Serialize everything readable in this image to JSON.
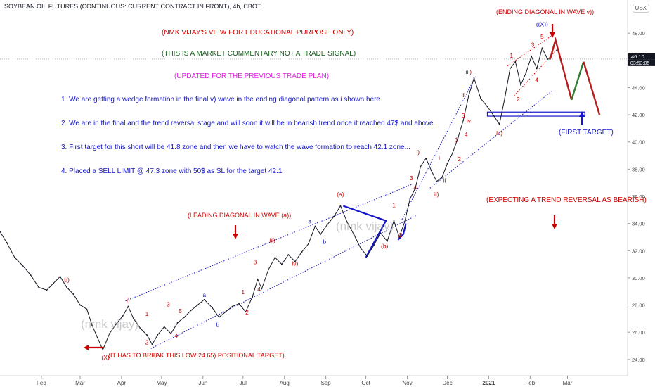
{
  "header": {
    "title": "SOYBEAN OIL FUTURES (CONTINUOUS: CURRENT CONTRACT IN FRONT), 4h, CBOT",
    "currency": "USX"
  },
  "price_label": {
    "price": "46.10",
    "countdown": "03:53:05",
    "color": "#131722"
  },
  "annotations": {
    "title_line": "(NMK VIJAY'S VIEW FOR EDUCATIONAL PURPOSE ONLY)",
    "disclaimer": "(THIS IS A MARKET COMMENTARY NOT A  TRADE SIGNAL)",
    "updated": "(UPDATED FOR THE PREVIOUS TRADE PLAN)",
    "points": [
      "1. We are getting a wedge formation in the final v) wave in the ending diagonal pattern as i shown here.",
      "2. We are in the final and the trend reversal stage and will soon it will be in bearish trend once it reached 47$ and above.",
      "3. First target for this short will be 41.8 zone and then we have to watch the wave formation to reach 42.1 zone...",
      "4. Placed a SELL LIMIT @ 47.3 zone with 50$ as  SL for the target 42.1"
    ],
    "ending_diagonal": "(ENDING DIAGONAL IN WAVE v))",
    "first_target": "(FIRST TARGET)",
    "expecting": "(EXPECTING A TREND REVERSAL AS BEARISH)",
    "leading_diagonal": "(LEADING DIAGONAL IN WAVE (a))",
    "break_low": "(IT HAS TO BREAK THIS LOW 24.65) POSITIONAL TARGET)",
    "watermark": "(nmk vijay)"
  },
  "colors": {
    "red": "#cc0000",
    "dark_red": "#b71c1c",
    "blue": "#1414c8",
    "magenta": "#e020e0",
    "green": "#1b5e20",
    "price": "#131722",
    "projection_green": "#2e7d32"
  },
  "wave_labels": [
    {
      "t": "b)",
      "x": "2020-02-20",
      "y": 29.7,
      "c": "red"
    },
    {
      "t": "(X)",
      "x": "2020-03-20",
      "y": 24.0,
      "c": "red"
    },
    {
      "t": "i)",
      "x": "2020-04-06",
      "y": 28.2,
      "c": "red"
    },
    {
      "t": "ii)",
      "x": "2020-04-26",
      "y": 24.2,
      "c": "red"
    },
    {
      "t": "1",
      "x": "2020-04-20",
      "y": 27.2,
      "c": "red"
    },
    {
      "t": "2",
      "x": "2020-04-20",
      "y": 25.1,
      "c": "red"
    },
    {
      "t": "3",
      "x": "2020-05-06",
      "y": 27.9,
      "c": "red"
    },
    {
      "t": "4",
      "x": "2020-05-12",
      "y": 25.6,
      "c": "red"
    },
    {
      "t": "5",
      "x": "2020-05-15",
      "y": 27.4,
      "c": "red"
    },
    {
      "t": "a",
      "x": "2020-06-02",
      "y": 28.6,
      "c": "blue"
    },
    {
      "t": "b",
      "x": "2020-06-12",
      "y": 26.4,
      "c": "blue"
    },
    {
      "t": "1",
      "x": "2020-07-01",
      "y": 28.8,
      "c": "red"
    },
    {
      "t": "2",
      "x": "2020-07-04",
      "y": 27.3,
      "c": "red"
    },
    {
      "t": "3",
      "x": "2020-07-10",
      "y": 31.0,
      "c": "red"
    },
    {
      "t": "4",
      "x": "2020-07-13",
      "y": 29.0,
      "c": "red"
    },
    {
      "t": "iii)",
      "x": "2020-07-23",
      "y": 32.6,
      "c": "red"
    },
    {
      "t": "iv)",
      "x": "2020-08-09",
      "y": 30.9,
      "c": "red"
    },
    {
      "t": "a",
      "x": "2020-08-20",
      "y": 34.0,
      "c": "blue"
    },
    {
      "t": "b",
      "x": "2020-08-31",
      "y": 32.5,
      "c": "blue"
    },
    {
      "t": "(a)",
      "x": "2020-09-12",
      "y": 36.0,
      "c": "red"
    },
    {
      "t": "(b)",
      "x": "2020-10-15",
      "y": 32.2,
      "c": "red"
    },
    {
      "t": "1",
      "x": "2020-10-22",
      "y": 35.2,
      "c": "red"
    },
    {
      "t": "2",
      "x": "2020-10-27",
      "y": 33.0,
      "c": "red"
    },
    {
      "t": "3",
      "x": "2020-11-04",
      "y": 37.2,
      "c": "red"
    },
    {
      "t": "4",
      "x": "2020-11-07",
      "y": 36.5,
      "c": "red"
    },
    {
      "t": "i)",
      "x": "2020-11-09",
      "y": 39.1,
      "c": "red"
    },
    {
      "t": "ii)",
      "x": "2020-11-23",
      "y": 36.0,
      "c": "red"
    },
    {
      "t": "i",
      "x": "2020-11-25",
      "y": 38.7,
      "c": "red"
    },
    {
      "t": "ii",
      "x": "2020-11-29",
      "y": 37.0,
      "c": "red"
    },
    {
      "t": "1",
      "x": "2020-12-08",
      "y": 40.0,
      "c": "red"
    },
    {
      "t": "2",
      "x": "2020-12-10",
      "y": 38.6,
      "c": "red"
    },
    {
      "t": "3",
      "x": "2020-12-13",
      "y": 41.8,
      "c": "red"
    },
    {
      "t": "4",
      "x": "2020-12-15",
      "y": 40.4,
      "c": "red"
    },
    {
      "t": "iii)",
      "x": "2020-12-17",
      "y": 45.0,
      "c": "red"
    },
    {
      "t": "iii",
      "x": "2020-12-13",
      "y": 43.3,
      "c": "red"
    },
    {
      "t": "iv",
      "x": "2020-12-17",
      "y": 41.4,
      "c": "red"
    },
    {
      "t": "iv)",
      "x": "2021-01-09",
      "y": 40.5,
      "c": "red"
    },
    {
      "t": "1",
      "x": "2021-01-18",
      "y": 46.2,
      "c": "red"
    },
    {
      "t": "2",
      "x": "2021-01-23",
      "y": 43.0,
      "c": "red"
    },
    {
      "t": "3",
      "x": "2021-02-03",
      "y": 47.0,
      "c": "red"
    },
    {
      "t": "4",
      "x": "2021-02-06",
      "y": 44.4,
      "c": "red"
    },
    {
      "t": "5",
      "x": "2021-02-10",
      "y": 47.6,
      "c": "red"
    },
    {
      "t": "((X))",
      "x": "2021-02-10",
      "y": 48.5,
      "c": "blue"
    }
  ],
  "chart_data": {
    "type": "line",
    "xlim": [
      "2020-01-01",
      "2021-04-15"
    ],
    "ylim": [
      22.8,
      49.2
    ],
    "x_ticks": [
      {
        "label": "Feb",
        "x": "2020-02-01"
      },
      {
        "label": "Mar",
        "x": "2020-03-01"
      },
      {
        "label": "Apr",
        "x": "2020-04-01"
      },
      {
        "label": "May",
        "x": "2020-05-01"
      },
      {
        "label": "Jun",
        "x": "2020-06-01"
      },
      {
        "label": "Jul",
        "x": "2020-07-01"
      },
      {
        "label": "Aug",
        "x": "2020-08-01"
      },
      {
        "label": "Sep",
        "x": "2020-09-01"
      },
      {
        "label": "Oct",
        "x": "2020-10-01"
      },
      {
        "label": "Nov",
        "x": "2020-11-01"
      },
      {
        "label": "Dec",
        "x": "2020-12-01"
      },
      {
        "label": "2021",
        "x": "2021-01-01"
      },
      {
        "label": "Feb",
        "x": "2021-02-01"
      },
      {
        "label": "Mar",
        "x": "2021-03-01"
      }
    ],
    "y_ticks": [
      "24.00",
      "26.00",
      "28.00",
      "30.00",
      "32.00",
      "34.00",
      "36.00",
      "38.00",
      "40.00",
      "42.00",
      "44.00",
      "46.00",
      "48.00"
    ],
    "series": [
      {
        "points": [
          [
            "2020-01-01",
            33.4
          ],
          [
            "2020-01-06",
            32.6
          ],
          [
            "2020-01-12",
            31.5
          ],
          [
            "2020-01-18",
            30.9
          ],
          [
            "2020-01-24",
            30.2
          ],
          [
            "2020-01-30",
            29.3
          ],
          [
            "2020-02-05",
            29.1
          ],
          [
            "2020-02-10",
            29.6
          ],
          [
            "2020-02-15",
            30.1
          ],
          [
            "2020-02-20",
            29.3
          ],
          [
            "2020-02-25",
            28.8
          ],
          [
            "2020-03-01",
            28.0
          ],
          [
            "2020-03-06",
            27.7
          ],
          [
            "2020-03-10",
            26.5
          ],
          [
            "2020-03-14",
            25.6
          ],
          [
            "2020-03-18",
            24.7
          ],
          [
            "2020-03-23",
            25.9
          ],
          [
            "2020-03-28",
            26.6
          ],
          [
            "2020-04-02",
            27.2
          ],
          [
            "2020-04-06",
            27.9
          ],
          [
            "2020-04-10",
            27.0
          ],
          [
            "2020-04-15",
            26.3
          ],
          [
            "2020-04-20",
            25.8
          ],
          [
            "2020-04-24",
            25.1
          ],
          [
            "2020-04-28",
            25.8
          ],
          [
            "2020-05-03",
            26.4
          ],
          [
            "2020-05-08",
            25.9
          ],
          [
            "2020-05-13",
            26.7
          ],
          [
            "2020-05-18",
            27.1
          ],
          [
            "2020-05-23",
            27.6
          ],
          [
            "2020-05-28",
            28.0
          ],
          [
            "2020-06-02",
            28.4
          ],
          [
            "2020-06-08",
            27.8
          ],
          [
            "2020-06-13",
            27.1
          ],
          [
            "2020-06-18",
            27.5
          ],
          [
            "2020-06-23",
            27.9
          ],
          [
            "2020-06-28",
            28.1
          ],
          [
            "2020-07-03",
            27.5
          ],
          [
            "2020-07-08",
            28.6
          ],
          [
            "2020-07-12",
            29.9
          ],
          [
            "2020-07-15",
            29.2
          ],
          [
            "2020-07-20",
            30.6
          ],
          [
            "2020-07-25",
            31.5
          ],
          [
            "2020-07-30",
            31.0
          ],
          [
            "2020-08-04",
            31.7
          ],
          [
            "2020-08-09",
            31.2
          ],
          [
            "2020-08-14",
            31.9
          ],
          [
            "2020-08-19",
            32.5
          ],
          [
            "2020-08-24",
            33.8
          ],
          [
            "2020-08-28",
            33.2
          ],
          [
            "2020-09-02",
            33.9
          ],
          [
            "2020-09-07",
            34.5
          ],
          [
            "2020-09-12",
            35.3
          ],
          [
            "2020-09-17",
            34.1
          ],
          [
            "2020-09-22",
            33.2
          ],
          [
            "2020-09-27",
            32.2
          ],
          [
            "2020-10-02",
            31.6
          ],
          [
            "2020-10-07",
            32.4
          ],
          [
            "2020-10-12",
            33.3
          ],
          [
            "2020-10-17",
            32.7
          ],
          [
            "2020-10-22",
            34.2
          ],
          [
            "2020-10-26",
            33.0
          ],
          [
            "2020-10-30",
            34.1
          ],
          [
            "2020-11-03",
            35.8
          ],
          [
            "2020-11-07",
            36.6
          ],
          [
            "2020-11-11",
            38.2
          ],
          [
            "2020-11-15",
            38.8
          ],
          [
            "2020-11-19",
            37.9
          ],
          [
            "2020-11-23",
            37.1
          ],
          [
            "2020-11-27",
            37.4
          ],
          [
            "2020-12-01",
            38.4
          ],
          [
            "2020-12-05",
            39.2
          ],
          [
            "2020-12-09",
            40.3
          ],
          [
            "2020-12-13",
            41.6
          ],
          [
            "2020-12-17",
            43.4
          ],
          [
            "2020-12-21",
            44.7
          ],
          [
            "2020-12-26",
            43.2
          ],
          [
            "2020-12-31",
            42.6
          ],
          [
            "2021-01-05",
            41.9
          ],
          [
            "2021-01-09",
            41.3
          ],
          [
            "2021-01-13",
            43.2
          ],
          [
            "2021-01-17",
            45.4
          ],
          [
            "2021-01-21",
            45.9
          ],
          [
            "2021-01-25",
            44.2
          ],
          [
            "2021-01-29",
            45.1
          ],
          [
            "2021-02-02",
            46.3
          ],
          [
            "2021-02-06",
            45.4
          ],
          [
            "2021-02-10",
            46.9
          ],
          [
            "2021-02-14",
            46.1
          ],
          [
            "2021-02-16",
            46.1
          ]
        ]
      }
    ]
  }
}
